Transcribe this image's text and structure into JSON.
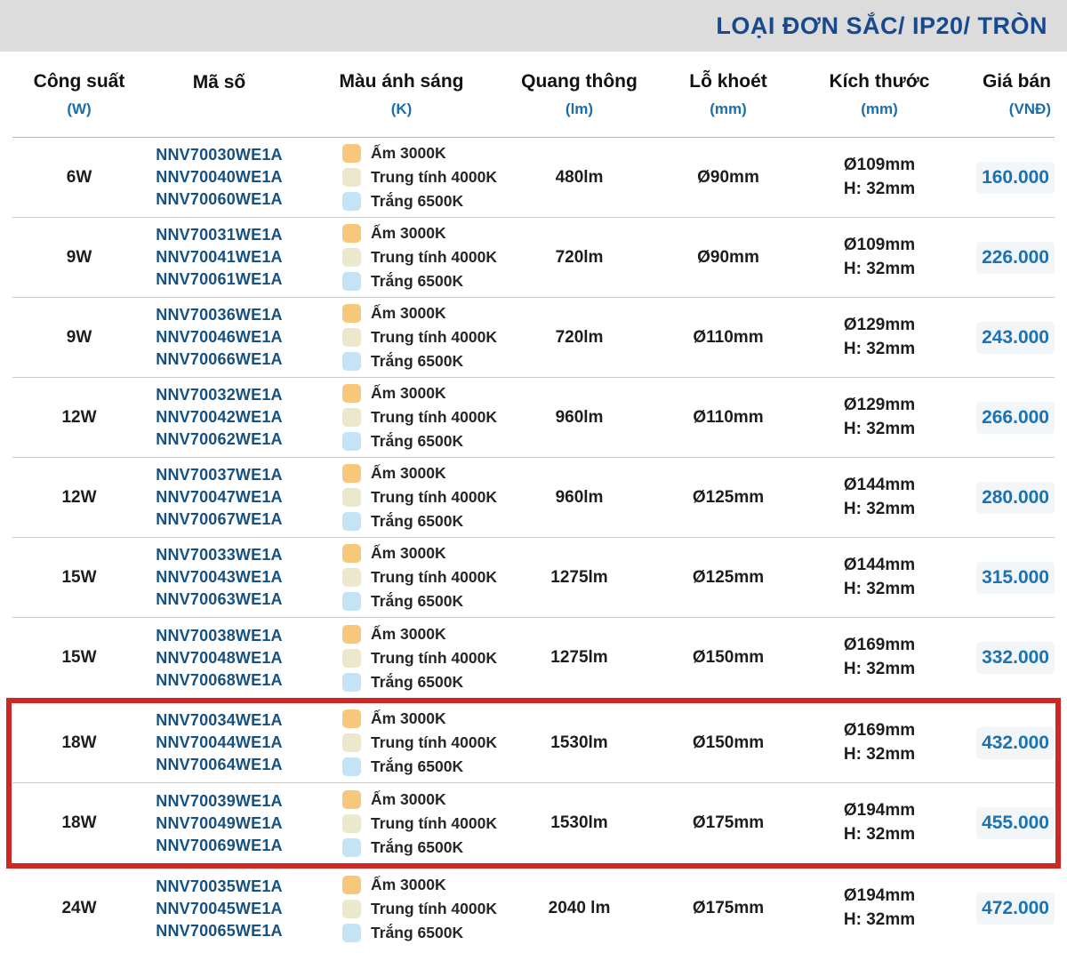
{
  "title": "LOẠI ĐƠN SẮC/ IP20/ TRÒN",
  "columns": [
    {
      "label": "Công suất",
      "unit": "(W)"
    },
    {
      "label": "Mã số",
      "unit": ""
    },
    {
      "label": "Màu ánh sáng",
      "unit": "(K)"
    },
    {
      "label": "Quang thông",
      "unit": "(lm)"
    },
    {
      "label": "Lỗ khoét",
      "unit": "(mm)"
    },
    {
      "label": "Kích thước",
      "unit": "(mm)"
    },
    {
      "label": "Giá bán",
      "unit": "(VNĐ)"
    }
  ],
  "color_options": [
    {
      "label": "Ấm 3000K",
      "swatch": "#f7c87c"
    },
    {
      "label": "Trung tính 4000K",
      "swatch": "#ebe8cb"
    },
    {
      "label": "Trắng 6500K",
      "swatch": "#c4e4f6"
    }
  ],
  "colors": {
    "title_navy": "#17498c",
    "model_blue": "#165181",
    "price_blue": "#1a72b2",
    "unit_blue": "#1c6ea9",
    "highlight_red": "#cd2824",
    "strip_gray": "#dcdcdc",
    "separator_gray": "#c9c9c9"
  },
  "rows": [
    {
      "power": "6W",
      "models": [
        "NNV70030WE1A",
        "NNV70040WE1A",
        "NNV70060WE1A"
      ],
      "lumen": "480lm",
      "hole": "Ø90mm",
      "size_d": "Ø109mm",
      "size_h": "H: 32mm",
      "price": "160.000",
      "highlighted": false
    },
    {
      "power": "9W",
      "models": [
        "NNV70031WE1A",
        "NNV70041WE1A",
        "NNV70061WE1A"
      ],
      "lumen": "720lm",
      "hole": "Ø90mm",
      "size_d": "Ø109mm",
      "size_h": "H: 32mm",
      "price": "226.000",
      "highlighted": false
    },
    {
      "power": "9W",
      "models": [
        "NNV70036WE1A",
        "NNV70046WE1A",
        "NNV70066WE1A"
      ],
      "lumen": "720lm",
      "hole": "Ø110mm",
      "size_d": "Ø129mm",
      "size_h": "H: 32mm",
      "price": "243.000",
      "highlighted": false
    },
    {
      "power": "12W",
      "models": [
        "NNV70032WE1A",
        "NNV70042WE1A",
        "NNV70062WE1A"
      ],
      "lumen": "960lm",
      "hole": "Ø110mm",
      "size_d": "Ø129mm",
      "size_h": "H: 32mm",
      "price": "266.000",
      "highlighted": false
    },
    {
      "power": "12W",
      "models": [
        "NNV70037WE1A",
        "NNV70047WE1A",
        "NNV70067WE1A"
      ],
      "lumen": "960lm",
      "hole": "Ø125mm",
      "size_d": "Ø144mm",
      "size_h": "H: 32mm",
      "price": "280.000",
      "highlighted": false
    },
    {
      "power": "15W",
      "models": [
        "NNV70033WE1A",
        "NNV70043WE1A",
        "NNV70063WE1A"
      ],
      "lumen": "1275lm",
      "hole": "Ø125mm",
      "size_d": "Ø144mm",
      "size_h": "H: 32mm",
      "price": "315.000",
      "highlighted": false
    },
    {
      "power": "15W",
      "models": [
        "NNV70038WE1A",
        "NNV70048WE1A",
        "NNV70068WE1A"
      ],
      "lumen": "1275lm",
      "hole": "Ø150mm",
      "size_d": "Ø169mm",
      "size_h": "H: 32mm",
      "price": "332.000",
      "highlighted": false
    },
    {
      "power": "18W",
      "models": [
        "NNV70034WE1A",
        "NNV70044WE1A",
        "NNV70064WE1A"
      ],
      "lumen": "1530lm",
      "hole": "Ø150mm",
      "size_d": "Ø169mm",
      "size_h": "H: 32mm",
      "price": "432.000",
      "highlighted": true
    },
    {
      "power": "18W",
      "models": [
        "NNV70039WE1A",
        "NNV70049WE1A",
        "NNV70069WE1A"
      ],
      "lumen": "1530lm",
      "hole": "Ø175mm",
      "size_d": "Ø194mm",
      "size_h": "H: 32mm",
      "price": "455.000",
      "highlighted": true
    },
    {
      "power": "24W",
      "models": [
        "NNV70035WE1A",
        "NNV70045WE1A",
        "NNV70065WE1A"
      ],
      "lumen": "2040 lm",
      "hole": "Ø175mm",
      "size_d": "Ø194mm",
      "size_h": "H: 32mm",
      "price": "472.000",
      "highlighted": false
    }
  ]
}
